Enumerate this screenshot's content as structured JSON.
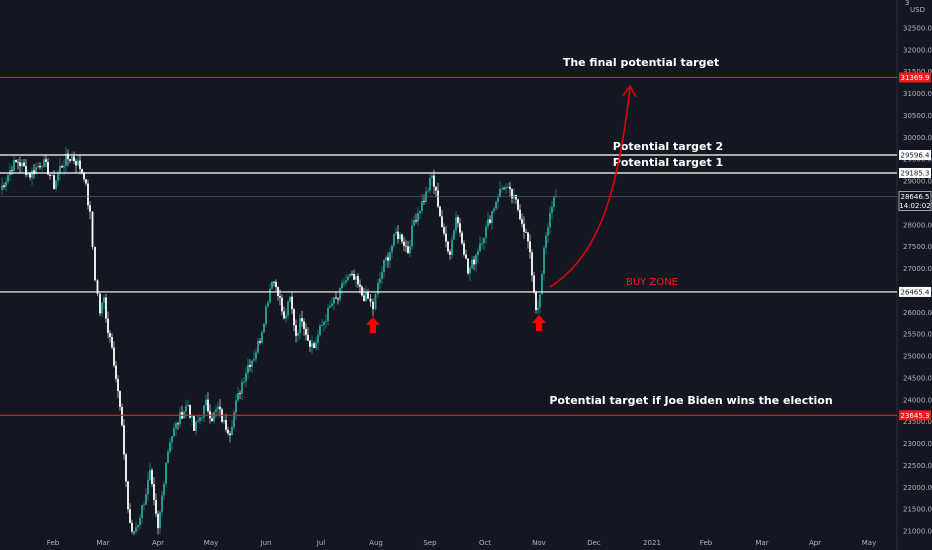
{
  "colors": {
    "background": "#131722",
    "up_candle": "#26a69a",
    "down_candle": "#ffffff",
    "line_white": "#ffffff",
    "line_red": "#f01d1d",
    "arrow_red": "#ff0000",
    "axis_text": "#b2b5be",
    "price_tag_white_bg": "#ffffff",
    "price_tag_red_bg": "#f01d1d"
  },
  "axis": {
    "currency": "USD",
    "countdown": "14:02:02"
  },
  "annotations": {
    "final_target": "The final potential target",
    "target2": "Potential target 2",
    "target1": "Potential target 1",
    "buy_zone": "BUY ZONE",
    "biden_target": "Potential target if Joe Biden wins the election"
  },
  "chart_data": {
    "type": "candlestick",
    "ylim": [
      20900,
      33100
    ],
    "y_ticks": [
      21000,
      21500,
      22000,
      22500,
      23000,
      23500,
      24000,
      24500,
      25000,
      25500,
      26000,
      26500,
      27000,
      27500,
      28000,
      28500,
      29000,
      29500,
      30000,
      30500,
      31000,
      31500,
      32000,
      32500
    ],
    "y_tick_labels": [
      "21000.0",
      "21500.0",
      "22000.0",
      "22500.0",
      "23000.0",
      "23500.0",
      "24000.0",
      "24500.0",
      "25000.0",
      "25500.0",
      "26000.0",
      "26500.0",
      "27000.0",
      "27500.0",
      "28000.0",
      "28500.0",
      "29000.0",
      "29500.0",
      "30000.0",
      "30500.0",
      "31000.0",
      "31500.0",
      "32000.0",
      "32500.0"
    ],
    "top_tick_label": "3",
    "x_tick_labels": [
      "Feb",
      "Mar",
      "Apr",
      "May",
      "Jun",
      "Jul",
      "Aug",
      "Sep",
      "Oct",
      "Nov",
      "Dec",
      "2021",
      "Feb",
      "Mar",
      "Apr",
      "May"
    ],
    "horizontal_levels": [
      {
        "price": 31369.9,
        "label": "31369.9",
        "color": "red"
      },
      {
        "price": 29596.4,
        "label": "29596.4",
        "color": "white"
      },
      {
        "price": 29185.3,
        "label": "29185.3",
        "color": "white"
      },
      {
        "price": 26465.4,
        "label": "26465.4",
        "color": "white"
      },
      {
        "price": 23645.3,
        "label": "23645.3",
        "color": "red"
      }
    ],
    "current_price": {
      "price": 28646.5,
      "label": "28646.5"
    },
    "price_path": [
      [
        0,
        28800
      ],
      [
        6,
        29050
      ],
      [
        12,
        29350
      ],
      [
        18,
        29450
      ],
      [
        24,
        29300
      ],
      [
        30,
        29150
      ],
      [
        36,
        29300
      ],
      [
        42,
        29450
      ],
      [
        48,
        29250
      ],
      [
        54,
        28900
      ],
      [
        60,
        29300
      ],
      [
        66,
        29500
      ],
      [
        72,
        29550
      ],
      [
        78,
        29400
      ],
      [
        84,
        29150
      ],
      [
        90,
        28200
      ],
      [
        95,
        26800
      ],
      [
        100,
        26000
      ],
      [
        104,
        26300
      ],
      [
        108,
        25600
      ],
      [
        112,
        25300
      ],
      [
        116,
        24500
      ],
      [
        120,
        23800
      ],
      [
        124,
        22800
      ],
      [
        128,
        21500
      ],
      [
        132,
        20900
      ],
      [
        138,
        21200
      ],
      [
        144,
        21700
      ],
      [
        150,
        22300
      ],
      [
        154,
        21600
      ],
      [
        158,
        21000
      ],
      [
        162,
        21800
      ],
      [
        166,
        22600
      ],
      [
        170,
        23100
      ],
      [
        176,
        23400
      ],
      [
        182,
        23700
      ],
      [
        188,
        23900
      ],
      [
        194,
        23300
      ],
      [
        200,
        23600
      ],
      [
        206,
        23900
      ],
      [
        212,
        23600
      ],
      [
        218,
        23800
      ],
      [
        224,
        23450
      ],
      [
        230,
        23300
      ],
      [
        236,
        23900
      ],
      [
        242,
        24400
      ],
      [
        248,
        24800
      ],
      [
        254,
        25000
      ],
      [
        260,
        25400
      ],
      [
        266,
        26100
      ],
      [
        272,
        26800
      ],
      [
        278,
        26500
      ],
      [
        284,
        25800
      ],
      [
        290,
        26300
      ],
      [
        296,
        25500
      ],
      [
        302,
        25900
      ],
      [
        308,
        25400
      ],
      [
        314,
        25200
      ],
      [
        320,
        25600
      ],
      [
        326,
        25900
      ],
      [
        332,
        26200
      ],
      [
        338,
        26300
      ],
      [
        344,
        26700
      ],
      [
        350,
        26800
      ],
      [
        356,
        26700
      ],
      [
        362,
        26400
      ],
      [
        368,
        26300
      ],
      [
        373,
        26100
      ],
      [
        378,
        26600
      ],
      [
        384,
        27100
      ],
      [
        390,
        27400
      ],
      [
        396,
        27800
      ],
      [
        402,
        27700
      ],
      [
        408,
        27400
      ],
      [
        414,
        28100
      ],
      [
        420,
        28400
      ],
      [
        426,
        28700
      ],
      [
        432,
        29100
      ],
      [
        438,
        28500
      ],
      [
        444,
        27700
      ],
      [
        450,
        27400
      ],
      [
        456,
        28200
      ],
      [
        462,
        27700
      ],
      [
        468,
        26900
      ],
      [
        474,
        27200
      ],
      [
        480,
        27600
      ],
      [
        486,
        27900
      ],
      [
        492,
        28300
      ],
      [
        498,
        28700
      ],
      [
        504,
        28900
      ],
      [
        510,
        28700
      ],
      [
        516,
        28500
      ],
      [
        522,
        28100
      ],
      [
        528,
        27600
      ],
      [
        532,
        26900
      ],
      [
        536,
        26100
      ],
      [
        540,
        26300
      ],
      [
        544,
        27400
      ],
      [
        548,
        28000
      ],
      [
        552,
        28500
      ],
      [
        556,
        28646
      ]
    ]
  }
}
